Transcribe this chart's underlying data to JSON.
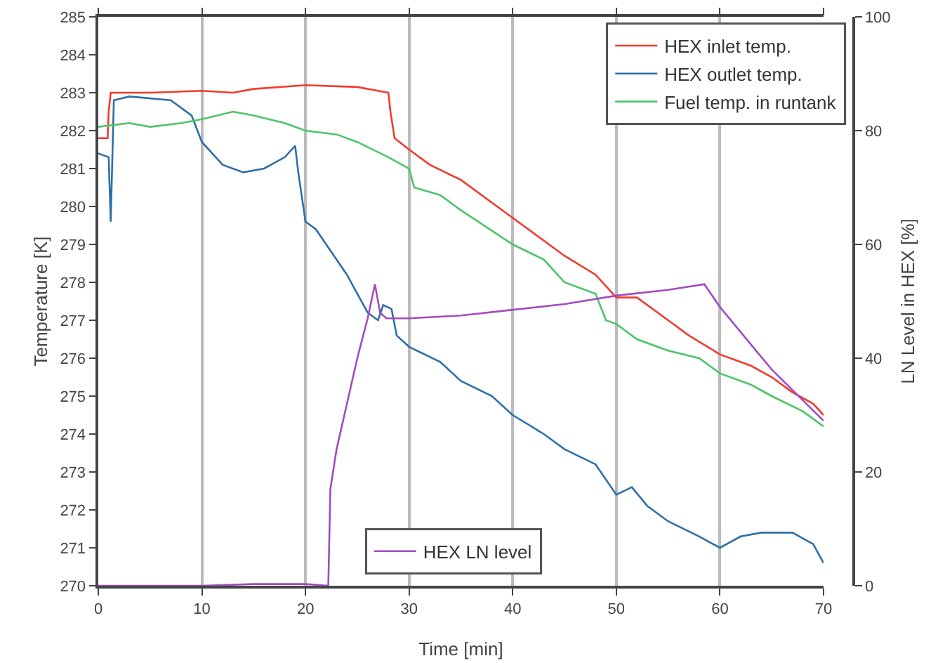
{
  "chart_data": {
    "type": "line",
    "xlabel": "Time [min]",
    "ylabel": "Temperature [K]",
    "y2label": "LN Level in HEX [%]",
    "xlim": [
      0,
      70
    ],
    "xticks": [
      0,
      10,
      20,
      30,
      40,
      50,
      60,
      70
    ],
    "ylim": [
      270,
      285
    ],
    "yticks": [
      270,
      271,
      272,
      273,
      274,
      275,
      276,
      277,
      278,
      279,
      280,
      281,
      282,
      283,
      284,
      285
    ],
    "y2lim": [
      0,
      100
    ],
    "y2ticks": [
      0,
      20,
      40,
      60,
      80,
      100
    ],
    "grid": "x",
    "legend": "top right",
    "marker": "none",
    "line_style": "solid",
    "series": [
      {
        "name": "HEX inlet temp.",
        "color": "#f03c2e",
        "x": [
          0,
          0.9,
          1,
          1.2,
          5,
          10,
          13,
          15,
          20,
          25,
          27,
          28,
          28.2,
          28.6,
          30,
          32,
          35,
          40,
          45,
          48,
          50,
          52,
          55,
          57,
          60,
          63,
          65,
          67,
          69,
          70
        ],
        "values": [
          281.8,
          281.8,
          282.5,
          283.0,
          283.0,
          283.05,
          283.0,
          283.1,
          283.2,
          283.15,
          283.05,
          283.0,
          282.5,
          281.8,
          281.5,
          281.1,
          280.7,
          279.7,
          278.7,
          278.2,
          277.6,
          277.6,
          277.0,
          276.6,
          276.1,
          275.8,
          275.5,
          275.1,
          274.8,
          274.5
        ]
      },
      {
        "name": "HEX outlet temp.",
        "color": "#2e6fa8",
        "x": [
          0,
          1,
          1.2,
          1.5,
          3,
          7,
          9,
          10,
          12,
          14,
          16,
          18,
          19,
          19.3,
          20,
          21,
          24,
          26,
          27,
          27.5,
          28.3,
          28.8,
          30,
          33,
          35,
          38,
          40,
          43,
          45,
          48,
          50,
          51.5,
          53,
          55,
          58,
          60,
          62,
          64,
          67,
          69,
          70
        ],
        "values": [
          281.4,
          281.3,
          279.6,
          282.8,
          282.9,
          282.8,
          282.4,
          281.7,
          281.1,
          280.9,
          281.0,
          281.3,
          281.6,
          280.9,
          279.6,
          279.4,
          278.2,
          277.2,
          277.0,
          277.4,
          277.3,
          276.6,
          276.3,
          275.9,
          275.4,
          275.0,
          274.5,
          274.0,
          273.6,
          273.2,
          272.4,
          272.6,
          272.1,
          271.7,
          271.3,
          271.0,
          271.3,
          271.4,
          271.4,
          271.1,
          270.6
        ]
      },
      {
        "name": "Fuel temp. in runtank",
        "color": "#4cc46a",
        "x": [
          0,
          3,
          5,
          8,
          10,
          13,
          15,
          18,
          20,
          23,
          25,
          28,
          30,
          30.5,
          33,
          35,
          40,
          43,
          45,
          48,
          49,
          50,
          52,
          55,
          58,
          60,
          63,
          65,
          68,
          70
        ],
        "values": [
          282.1,
          282.2,
          282.1,
          282.2,
          282.3,
          282.5,
          282.4,
          282.2,
          282.0,
          281.9,
          281.7,
          281.3,
          281.0,
          280.5,
          280.3,
          279.9,
          279.0,
          278.6,
          278.0,
          277.7,
          277.0,
          276.9,
          276.5,
          276.2,
          276.0,
          275.6,
          275.3,
          275.0,
          274.6,
          274.2
        ]
      },
      {
        "name": "HEX LN level",
        "color": "#a04cc0",
        "axis": "y2",
        "x": [
          0,
          10,
          15,
          20,
          22.2,
          22.4,
          23,
          24,
          25,
          26,
          26.7,
          27.2,
          27.8,
          30,
          35,
          40,
          45,
          50,
          55,
          58.5,
          60,
          65,
          70
        ],
        "values": [
          0,
          0,
          0.3,
          0.3,
          0,
          17,
          24,
          32,
          40,
          47,
          53,
          48,
          47,
          47,
          47.5,
          48.5,
          49.5,
          51,
          52,
          53,
          49,
          38,
          29
        ]
      }
    ]
  }
}
